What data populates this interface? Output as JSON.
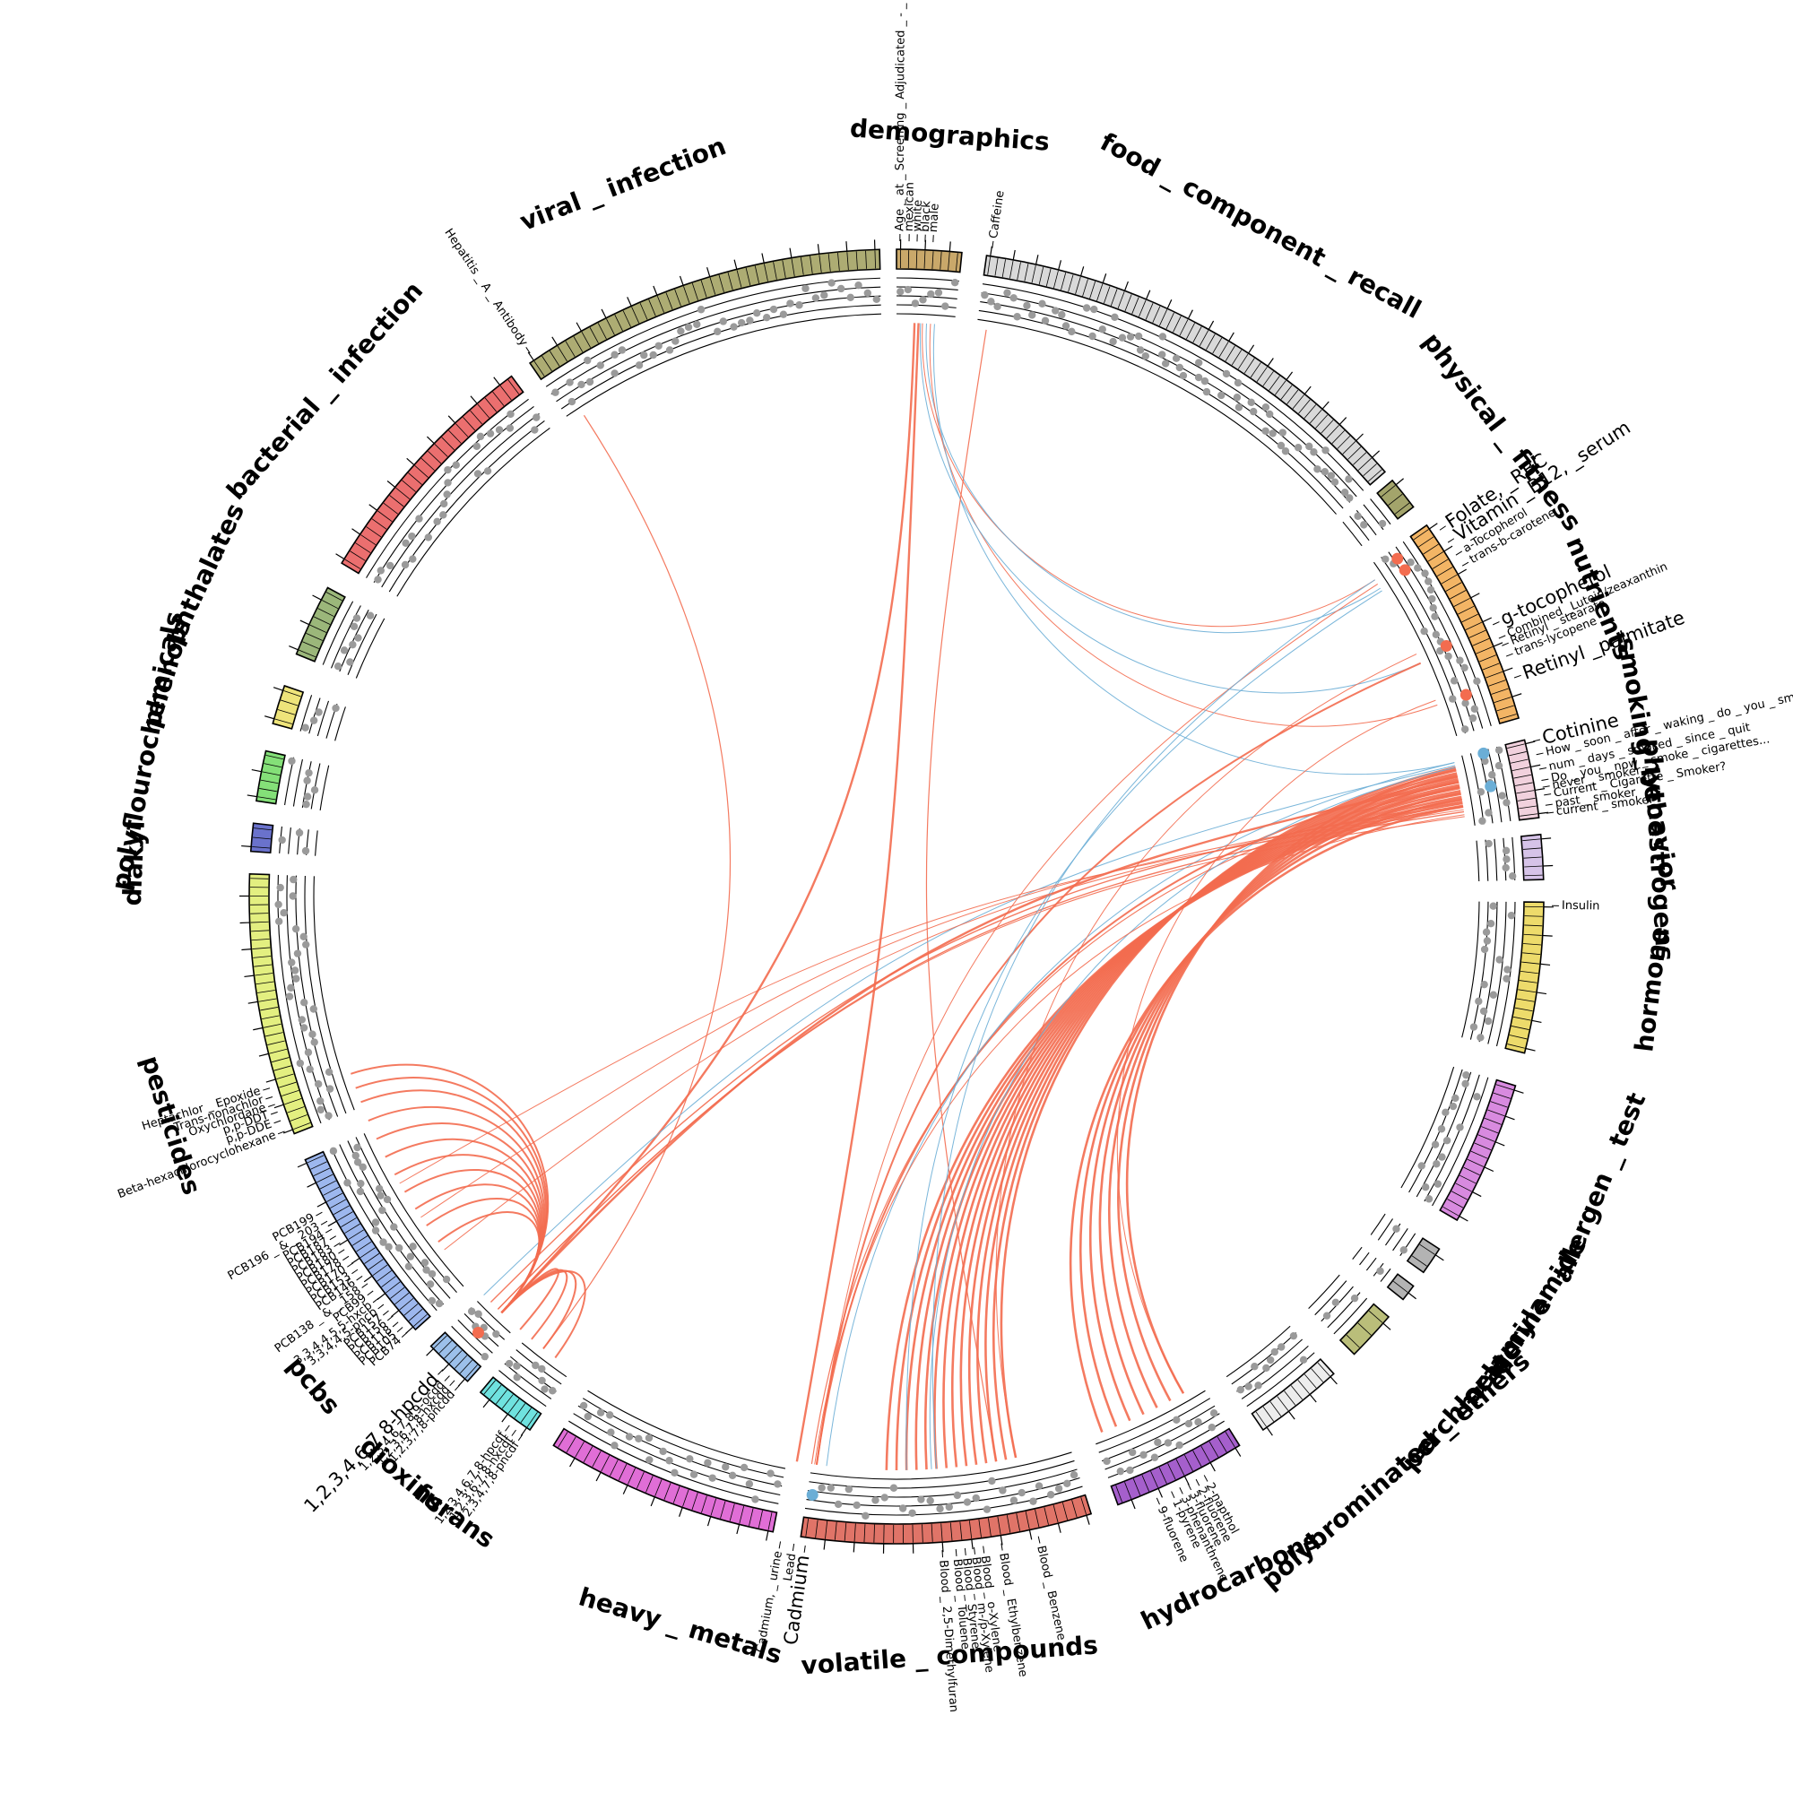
{
  "colors": {
    "positive": "#F36C4F",
    "negative": "#6BAED6",
    "grey_dot": "#9A9A9A",
    "track_line": "#000000"
  },
  "categories": [
    {
      "name": "demographics",
      "start": 0.0,
      "end": 5.8,
      "color": "#C9A86A",
      "count": 8
    },
    {
      "name": "food_component_recall",
      "start": 8.0,
      "end": 49.0,
      "color": "#D9D9D9",
      "count": 60
    },
    {
      "name": "physical_fitness",
      "start": 50.0,
      "end": 53.0,
      "color": "#A3A46B",
      "count": 3
    },
    {
      "name": "nutrients",
      "start": 55.0,
      "end": 74.0,
      "color": "#F3B565",
      "count": 24
    },
    {
      "name": "smoking_behavior",
      "start": 76.0,
      "end": 83.0,
      "color": "#F1D1DD",
      "count": 10
    },
    {
      "name": "phytoestrogens",
      "start": 84.5,
      "end": 88.5,
      "color": "#D6C3E8",
      "count": 5
    },
    {
      "name": "hormone",
      "start": 90.5,
      "end": 104.0,
      "color": "#EDDB6B",
      "count": 16
    },
    {
      "name": "allergen_test",
      "start": 107.0,
      "end": 120.0,
      "color": "#D88ADF",
      "count": 16
    },
    {
      "name": "acrylamide",
      "start": 123.0,
      "end": 125.5,
      "color": "#B3B3B3",
      "count": 2
    },
    {
      "name": "melamine",
      "start": 127.0,
      "end": 128.5,
      "color": "#B3B3B3",
      "count": 1
    },
    {
      "name": "perchlorate",
      "start": 130.5,
      "end": 135.0,
      "color": "#BABE7A",
      "count": 3
    },
    {
      "name": "polybrominated_ethers",
      "start": 137.5,
      "end": 145.5,
      "color": "#EDEDED",
      "count": 10
    },
    {
      "name": "hydrocarbons",
      "start": 148.0,
      "end": 160.0,
      "color": "#A55FCC",
      "count": 14
    },
    {
      "name": "volatile_compounds",
      "start": 162.5,
      "end": 188.5,
      "color": "#E07468",
      "count": 30
    },
    {
      "name": "heavy_metals",
      "start": 191.0,
      "end": 212.0,
      "color": "#E06ED6",
      "count": 24
    },
    {
      "name": "furans",
      "start": 214.5,
      "end": 220.0,
      "color": "#6FE2DF",
      "count": 8
    },
    {
      "name": "dioxins",
      "start": 221.5,
      "end": 226.0,
      "color": "#9CC0EA",
      "count": 7
    },
    {
      "name": "pcbs",
      "start": 228.0,
      "end": 246.0,
      "color": "#9DB7EE",
      "count": 28
    },
    {
      "name": "pesticides",
      "start": 248.5,
      "end": 272.0,
      "color": "#E3EF80",
      "count": 30
    },
    {
      "name": "diakyl",
      "start": 274.0,
      "end": 276.5,
      "color": "#6A72CC",
      "count": 3
    },
    {
      "name": "polyflourochemicals",
      "start": 278.5,
      "end": 283.0,
      "color": "#84E078",
      "count": 6
    },
    {
      "name": "phenols",
      "start": 285.5,
      "end": 289.0,
      "color": "#EEE47A",
      "count": 4
    },
    {
      "name": "phthalates",
      "start": 292.0,
      "end": 298.5,
      "color": "#9BB77A",
      "count": 8
    },
    {
      "name": "bacterial_infection",
      "start": 301.0,
      "end": 323.5,
      "color": "#EB6F6F",
      "count": 26
    },
    {
      "name": "viral_infection",
      "start": 325.5,
      "end": 358.5,
      "color": "#ADAC73",
      "count": 40
    }
  ],
  "category_labels": [
    {
      "text": "demographics",
      "angle": 4.0
    },
    {
      "text": "food _ component _ recall",
      "angle": 28.5
    },
    {
      "text": "physical _ fitness",
      "angle": 52.5
    },
    {
      "text": "nutrients",
      "angle": 67.0
    },
    {
      "text": "smoking_behavior",
      "angle": 80.0
    },
    {
      "text": "phytoestrogens",
      "angle": 86.5
    },
    {
      "text": "hormone",
      "angle": 97.0
    },
    {
      "text": "allergen _ test",
      "angle": 112.5
    },
    {
      "text": "acrylamide",
      "angle": 122.5
    },
    {
      "text": "melamine",
      "angle": 127.0
    },
    {
      "text": "perchlorate",
      "angle": 132.0
    },
    {
      "text": "polybrominated _ ethers",
      "angle": 139.0
    },
    {
      "text": "hydrocarbons",
      "angle": 154.0
    },
    {
      "text": "volatile _ compounds",
      "angle": 176.0
    },
    {
      "text": "heavy _ metals",
      "angle": 196.5
    },
    {
      "text": "furans",
      "angle": 215.5
    },
    {
      "text": "dioxins",
      "angle": 220.5
    },
    {
      "text": "pcbs",
      "angle": 230.0
    },
    {
      "text": "pesticides",
      "angle": 252.5
    },
    {
      "text": "diakyl",
      "angle": 272.5
    },
    {
      "text": "polyflourochemicals",
      "angle": 281.0
    },
    {
      "text": "phenols",
      "angle": 287.0
    },
    {
      "text": "phthalates",
      "angle": 295.0
    },
    {
      "text": "bacterial _ infection",
      "angle": 311.5
    },
    {
      "text": "viral _ infection",
      "angle": 339.0
    }
  ],
  "variable_labels": [
    {
      "text": "Age _ at _ Screening _ Adjudicated _ - _ Recode",
      "angle": 0.3,
      "color": "#333333",
      "big": false
    },
    {
      "text": "mexican",
      "angle": 1.1,
      "color": "#333333",
      "big": false
    },
    {
      "text": "white",
      "angle": 1.8,
      "color": "#333333",
      "big": false
    },
    {
      "text": "black",
      "angle": 2.5,
      "color": "#333333",
      "big": false
    },
    {
      "text": "male",
      "angle": 3.2,
      "color": "#333333",
      "big": false
    },
    {
      "text": "Caffeine",
      "angle": 8.4,
      "color": "#333333",
      "big": false
    },
    {
      "text": "Folate, _RBC",
      "angle": 56.0,
      "color": "#F36C4F",
      "big": true
    },
    {
      "text": "Vitamin _B12, _serum",
      "angle": 57.3,
      "color": "#F36C4F",
      "big": true
    },
    {
      "text": "a-Tocopherol",
      "angle": 58.6,
      "color": "#333333",
      "big": false
    },
    {
      "text": "trans-b-carotene",
      "angle": 59.7,
      "color": "#333333",
      "big": false
    },
    {
      "text": "g-tocopherol",
      "angle": 65.5,
      "color": "#F36C4F",
      "big": true
    },
    {
      "text": "Combined _Lutein/zeaxanthin",
      "angle": 66.8,
      "color": "#333333",
      "big": false
    },
    {
      "text": "Retinyl _ stearate",
      "angle": 67.5,
      "color": "#333333",
      "big": false
    },
    {
      "text": "trans-lycopene",
      "angle": 68.5,
      "color": "#333333",
      "big": false
    },
    {
      "text": "Retinyl _palmitate",
      "angle": 70.5,
      "color": "#F36C4F",
      "big": true
    },
    {
      "text": "Cotinine",
      "angle": 76.3,
      "color": "#6BAED6",
      "big": true
    },
    {
      "text": "How _ soon _ after _ waking _ do _ you _ smoke",
      "angle": 77.5,
      "color": "#333333",
      "big": false
    },
    {
      "text": "num _ days _ smoked _ since _ quit",
      "angle": 78.8,
      "color": "#333333",
      "big": false
    },
    {
      "text": "Do _ you _ now _ smoke _ cigarettes...",
      "angle": 79.8,
      "color": "#333333",
      "big": false
    },
    {
      "text": "never _ smoker",
      "angle": 80.4,
      "color": "#333333",
      "big": false
    },
    {
      "text": "Current _ Cigarette _ Smoker?",
      "angle": 81.1,
      "color": "#333333",
      "big": false
    },
    {
      "text": "past _ smoker",
      "angle": 82.0,
      "color": "#333333",
      "big": false
    },
    {
      "text": "current _ smoker",
      "angle": 82.7,
      "color": "#333333",
      "big": false
    },
    {
      "text": "Insulin",
      "angle": 90.8,
      "color": "#333333",
      "big": false
    },
    {
      "text": "2-napthol",
      "angle": 152.0,
      "color": "#333333",
      "big": false
    },
    {
      "text": "2-fluorene",
      "angle": 152.8,
      "color": "#333333",
      "big": false
    },
    {
      "text": "3-fluorene",
      "angle": 153.6,
      "color": "#333333",
      "big": false
    },
    {
      "text": "3-phenanthrene",
      "angle": 154.4,
      "color": "#333333",
      "big": false
    },
    {
      "text": "1-pyrene",
      "angle": 155.2,
      "color": "#333333",
      "big": false
    },
    {
      "text": "9-fluorene",
      "angle": 156.6,
      "color": "#333333",
      "big": false
    },
    {
      "text": "Blood _ Benzene",
      "angle": 167.5,
      "color": "#333333",
      "big": false
    },
    {
      "text": "Blood _ Ethylbenzene",
      "angle": 170.8,
      "color": "#333333",
      "big": false
    },
    {
      "text": "Blood _ o-Xylene",
      "angle": 172.4,
      "color": "#333333",
      "big": false
    },
    {
      "text": "Blood _ m-/p-Xylene",
      "angle": 173.2,
      "color": "#333333",
      "big": false
    },
    {
      "text": "Blood _ Styrene",
      "angle": 174.0,
      "color": "#333333",
      "big": false
    },
    {
      "text": "Blood _ Toluene",
      "angle": 174.8,
      "color": "#333333",
      "big": false
    },
    {
      "text": "Blood _ 2,5-Dimethylfuran",
      "angle": 176.0,
      "color": "#333333",
      "big": false
    },
    {
      "text": "Cadmium",
      "angle": 188.0,
      "color": "#6BAED6",
      "big": true
    },
    {
      "text": "Lead",
      "angle": 189.0,
      "color": "#333333",
      "big": false
    },
    {
      "text": "Cadmium, _ urine",
      "angle": 190.2,
      "color": "#333333",
      "big": false
    },
    {
      "text": "2,3,4,7,8-pncdf",
      "angle": 214.8,
      "color": "#333333",
      "big": false
    },
    {
      "text": "1,2,3,6,7,8-hxcdf",
      "angle": 215.5,
      "color": "#333333",
      "big": false
    },
    {
      "text": "1,2,3,4,6,7,8-hpcdf",
      "angle": 216.2,
      "color": "#333333",
      "big": false
    },
    {
      "text": "1,2,3,7,8-pncdd",
      "angle": 221.8,
      "color": "#333333",
      "big": false
    },
    {
      "text": "1,2,3,6,7,8-hxcdd",
      "angle": 222.4,
      "color": "#333333",
      "big": false
    },
    {
      "text": "1,2,3,4,6,7,8,9-ocdd",
      "angle": 223.0,
      "color": "#333333",
      "big": false
    },
    {
      "text": "1,2,3,4,6,7,8-hpcdd",
      "angle": 223.8,
      "color": "#F36C4F",
      "big": true
    },
    {
      "text": "PCB74",
      "angle": 228.3,
      "color": "#333333",
      "big": false
    },
    {
      "text": "PCB105",
      "angle": 228.9,
      "color": "#333333",
      "big": false
    },
    {
      "text": "PCB118",
      "angle": 229.5,
      "color": "#333333",
      "big": false
    },
    {
      "text": "PCB156",
      "angle": 230.2,
      "color": "#333333",
      "big": false
    },
    {
      "text": "PCB157",
      "angle": 230.8,
      "color": "#333333",
      "big": false
    },
    {
      "text": "3,3,4,4,5-pncb",
      "angle": 231.5,
      "color": "#333333",
      "big": false
    },
    {
      "text": "3,3,4,4,5,5-hxcb",
      "angle": 232.2,
      "color": "#333333",
      "big": false
    },
    {
      "text": "PCB99",
      "angle": 233.0,
      "color": "#333333",
      "big": false
    },
    {
      "text": "PCB138 _ & _ 158",
      "angle": 233.8,
      "color": "#333333",
      "big": false
    },
    {
      "text": "PCB146",
      "angle": 234.6,
      "color": "#333333",
      "big": false
    },
    {
      "text": "PCB153",
      "angle": 235.3,
      "color": "#333333",
      "big": false
    },
    {
      "text": "PCB170",
      "angle": 236.0,
      "color": "#333333",
      "big": false
    },
    {
      "text": "PCB178",
      "angle": 236.7,
      "color": "#333333",
      "big": false
    },
    {
      "text": "PCB180",
      "angle": 237.4,
      "color": "#333333",
      "big": false
    },
    {
      "text": "PCB183",
      "angle": 238.1,
      "color": "#333333",
      "big": false
    },
    {
      "text": "PCB187",
      "angle": 238.8,
      "color": "#333333",
      "big": false
    },
    {
      "text": "PCB194",
      "angle": 239.5,
      "color": "#333333",
      "big": false
    },
    {
      "text": "PCB196 _ & _ 203",
      "angle": 240.3,
      "color": "#333333",
      "big": false
    },
    {
      "text": "PCB199",
      "angle": 241.2,
      "color": "#333333",
      "big": false
    },
    {
      "text": "Beta-hexachlorocyclohexane",
      "angle": 249.0,
      "color": "#333333",
      "big": false
    },
    {
      "text": "p,p-DDE",
      "angle": 250.0,
      "color": "#333333",
      "big": false
    },
    {
      "text": "p,p-DDT",
      "angle": 250.8,
      "color": "#333333",
      "big": false
    },
    {
      "text": "Oxychlordane",
      "angle": 251.5,
      "color": "#333333",
      "big": false
    },
    {
      "text": "Trans-nonachlor",
      "angle": 252.2,
      "color": "#333333",
      "big": false
    },
    {
      "text": "Heptachlor _ Epoxide",
      "angle": 253.0,
      "color": "#333333",
      "big": false
    },
    {
      "text": "Hepatitis _ A _ Antibody",
      "angle": 326.0,
      "color": "#333333",
      "big": false
    }
  ],
  "highlight_points": [
    {
      "angle": 56.0,
      "color": "#F36C4F"
    },
    {
      "angle": 57.3,
      "color": "#F36C4F"
    },
    {
      "angle": 65.5,
      "color": "#F36C4F"
    },
    {
      "angle": 70.5,
      "color": "#F36C4F"
    },
    {
      "angle": 76.3,
      "color": "#6BAED6"
    },
    {
      "angle": 79.5,
      "color": "#6BAED6"
    },
    {
      "angle": 188.0,
      "color": "#6BAED6"
    },
    {
      "angle": 223.8,
      "color": "#F36C4F"
    }
  ],
  "links": [
    {
      "from": 1.8,
      "to": 223.5,
      "sign": "positive",
      "w": 2.4
    },
    {
      "from": 2.2,
      "to": 190.0,
      "sign": "positive",
      "w": 2.4
    },
    {
      "from": 2.6,
      "to": 56.5,
      "sign": "positive",
      "w": 1.0
    },
    {
      "from": 3.0,
      "to": 57.5,
      "sign": "negative",
      "w": 1.0
    },
    {
      "from": 3.4,
      "to": 70.5,
      "sign": "positive",
      "w": 1.0
    },
    {
      "from": 3.8,
      "to": 76.5,
      "sign": "negative",
      "w": 1.0
    },
    {
      "from": 2.4,
      "to": 66.0,
      "sign": "negative",
      "w": 1.0
    },
    {
      "from": 9.0,
      "to": 170.0,
      "sign": "positive",
      "w": 1.2
    },
    {
      "from": 327.0,
      "to": 218.0,
      "sign": "positive",
      "w": 1.2
    },
    {
      "from": 77.0,
      "to": 168.0,
      "sign": "positive",
      "w": 2.6
    },
    {
      "from": 77.3,
      "to": 169.0,
      "sign": "positive",
      "w": 2.6
    },
    {
      "from": 77.6,
      "to": 170.0,
      "sign": "positive",
      "w": 2.6
    },
    {
      "from": 77.9,
      "to": 171.0,
      "sign": "positive",
      "w": 2.6
    },
    {
      "from": 78.2,
      "to": 172.0,
      "sign": "positive",
      "w": 2.6
    },
    {
      "from": 78.5,
      "to": 173.0,
      "sign": "positive",
      "w": 2.6
    },
    {
      "from": 78.8,
      "to": 174.0,
      "sign": "positive",
      "w": 2.6
    },
    {
      "from": 79.1,
      "to": 175.0,
      "sign": "positive",
      "w": 2.6
    },
    {
      "from": 79.4,
      "to": 176.0,
      "sign": "positive",
      "w": 2.6
    },
    {
      "from": 79.7,
      "to": 177.0,
      "sign": "positive",
      "w": 2.6
    },
    {
      "from": 80.0,
      "to": 178.0,
      "sign": "positive",
      "w": 2.6
    },
    {
      "from": 80.3,
      "to": 179.0,
      "sign": "positive",
      "w": 2.6
    },
    {
      "from": 80.6,
      "to": 180.0,
      "sign": "positive",
      "w": 2.6
    },
    {
      "from": 80.9,
      "to": 181.0,
      "sign": "positive",
      "w": 2.6
    },
    {
      "from": 77.2,
      "to": 150.0,
      "sign": "positive",
      "w": 2.6
    },
    {
      "from": 77.8,
      "to": 151.5,
      "sign": "positive",
      "w": 2.6
    },
    {
      "from": 78.4,
      "to": 153.0,
      "sign": "positive",
      "w": 2.6
    },
    {
      "from": 79.0,
      "to": 154.5,
      "sign": "positive",
      "w": 2.6
    },
    {
      "from": 79.6,
      "to": 156.0,
      "sign": "positive",
      "w": 2.6
    },
    {
      "from": 80.2,
      "to": 157.5,
      "sign": "positive",
      "w": 2.6
    },
    {
      "from": 81.0,
      "to": 159.0,
      "sign": "positive",
      "w": 2.6
    },
    {
      "from": 78.0,
      "to": 188.0,
      "sign": "positive",
      "w": 2.0
    },
    {
      "from": 79.0,
      "to": 188.5,
      "sign": "positive",
      "w": 1.2
    },
    {
      "from": 76.5,
      "to": 187.0,
      "sign": "negative",
      "w": 1.0
    },
    {
      "from": 77.0,
      "to": 176.5,
      "sign": "negative",
      "w": 1.0
    },
    {
      "from": 81.5,
      "to": 224.0,
      "sign": "positive",
      "w": 1.4
    },
    {
      "from": 80.5,
      "to": 225.0,
      "sign": "positive",
      "w": 1.4
    },
    {
      "from": 76.8,
      "to": 226.0,
      "sign": "negative",
      "w": 1.0
    },
    {
      "from": 81.8,
      "to": 188.2,
      "sign": "positive",
      "w": 1.0
    },
    {
      "from": 223.5,
      "to": 233.0,
      "sign": "positive",
      "w": 2.0
    },
    {
      "from": 223.5,
      "to": 235.0,
      "sign": "positive",
      "w": 2.0
    },
    {
      "from": 223.5,
      "to": 237.0,
      "sign": "positive",
      "w": 2.0
    },
    {
      "from": 223.5,
      "to": 239.0,
      "sign": "positive",
      "w": 2.0
    },
    {
      "from": 223.5,
      "to": 241.0,
      "sign": "positive",
      "w": 2.0
    },
    {
      "from": 223.5,
      "to": 243.0,
      "sign": "positive",
      "w": 2.0
    },
    {
      "from": 223.5,
      "to": 245.0,
      "sign": "positive",
      "w": 2.0
    },
    {
      "from": 223.5,
      "to": 247.0,
      "sign": "positive",
      "w": 2.0
    },
    {
      "from": 223.5,
      "to": 249.0,
      "sign": "positive",
      "w": 2.0
    },
    {
      "from": 223.5,
      "to": 250.5,
      "sign": "positive",
      "w": 2.0
    },
    {
      "from": 223.5,
      "to": 252.0,
      "sign": "positive",
      "w": 2.0
    },
    {
      "from": 223.5,
      "to": 216.5,
      "sign": "positive",
      "w": 2.0
    },
    {
      "from": 223.5,
      "to": 218.0,
      "sign": "positive",
      "w": 2.0
    },
    {
      "from": 223.5,
      "to": 219.5,
      "sign": "positive",
      "w": 2.0
    },
    {
      "from": 223.5,
      "to": 221.0,
      "sign": "positive",
      "w": 2.0
    },
    {
      "from": 223.5,
      "to": 78.5,
      "sign": "positive",
      "w": 2.4
    },
    {
      "from": 188.0,
      "to": 66.0,
      "sign": "positive",
      "w": 2.0
    },
    {
      "from": 188.0,
      "to": 57.0,
      "sign": "positive",
      "w": 1.0
    },
    {
      "from": 176.0,
      "to": 56.5,
      "sign": "negative",
      "w": 1.0
    },
    {
      "from": 179.0,
      "to": 57.8,
      "sign": "negative",
      "w": 1.0
    },
    {
      "from": 168.0,
      "to": 65.0,
      "sign": "positive",
      "w": 1.0
    },
    {
      "from": 150.0,
      "to": 70.0,
      "sign": "positive",
      "w": 1.0
    },
    {
      "from": 232.0,
      "to": 81.0,
      "sign": "positive",
      "w": 1.0
    },
    {
      "from": 236.0,
      "to": 80.7,
      "sign": "positive",
      "w": 1.0
    },
    {
      "from": 240.0,
      "to": 81.3,
      "sign": "positive",
      "w": 1.0
    },
    {
      "from": 224.0,
      "to": 82.0,
      "sign": "positive",
      "w": 1.0
    }
  ]
}
